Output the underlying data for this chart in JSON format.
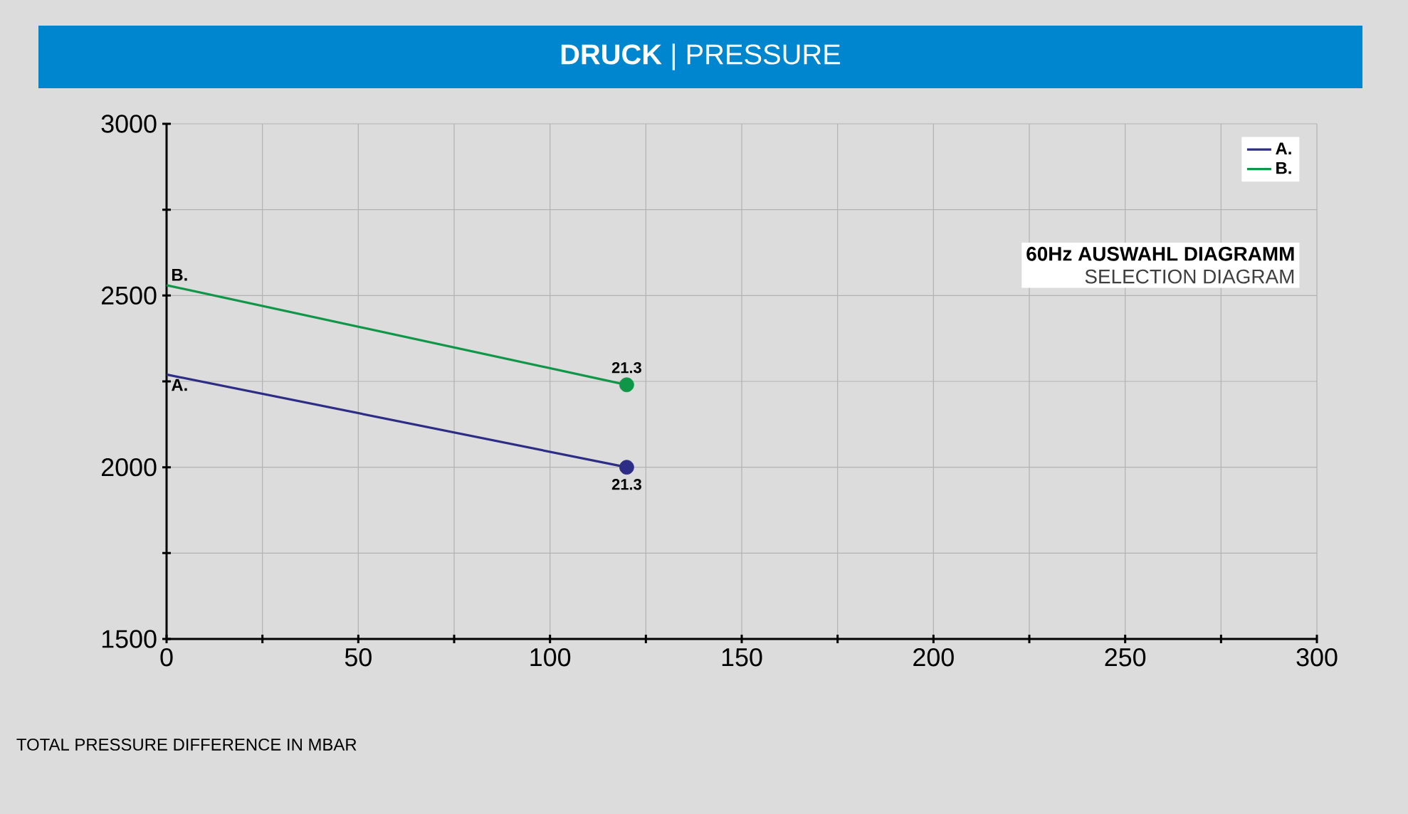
{
  "chart_data": {
    "type": "line",
    "title": "**DRUCK** | PRESSURE",
    "subtitle": "60Hz AUSWAHL DIAGRAMM",
    "xlabel": "TOTAL PRESSURE DIFFERENCE IN MBAR",
    "annotations": [
      "SELECTION DIAGRAM",
      {
        "text": "21.3",
        "x": 120,
        "y": 2240
      },
      {
        "text": "21.3",
        "x": 120,
        "y": 2000
      }
    ],
    "x": [
      0,
      120
    ],
    "series": [
      {
        "name": "A.",
        "color": "#2e2d85",
        "values": [
          2270,
          2000
        ]
      },
      {
        "name": "B.",
        "color": "#0f9747",
        "values": [
          2530,
          2240
        ]
      },
      {
        "type": "scatter",
        "color": "#2e2d85",
        "x": [
          120
        ],
        "values": [
          2000
        ]
      },
      {
        "type": "scatter",
        "color": "#0f9747",
        "x": [
          120
        ],
        "values": [
          2240
        ]
      }
    ],
    "xlim": [
      0,
      300
    ],
    "ylim": [
      1500,
      3000
    ],
    "xticks": [
      0,
      {
        "value": 25,
        "label": null
      },
      50,
      {
        "value": 75,
        "label": null
      },
      100,
      {
        "value": 125,
        "label": null
      },
      150,
      {
        "value": 175,
        "label": null
      },
      200,
      {
        "value": 225,
        "label": null
      },
      250,
      {
        "value": 275,
        "label": null
      },
      300
    ],
    "yticks": [
      1500,
      {
        "value": 1750,
        "label": null
      },
      2000,
      {
        "value": 2250,
        "label": null
      },
      2500,
      {
        "value": 2750,
        "label": null
      },
      3000
    ],
    "grid": true,
    "legend": "top right"
  }
}
